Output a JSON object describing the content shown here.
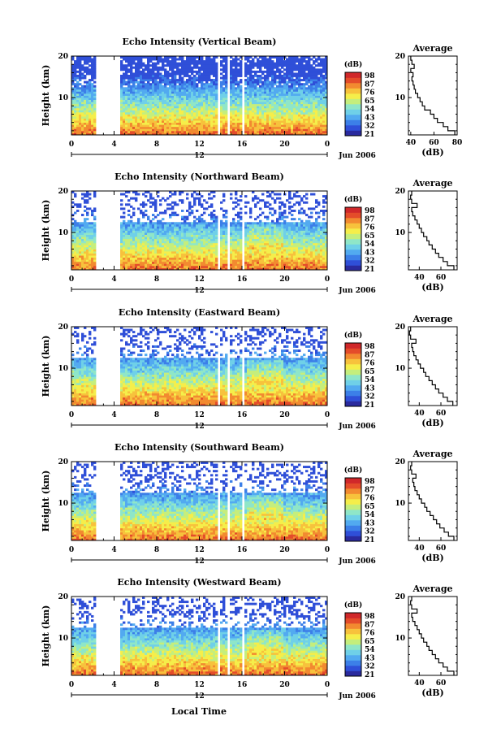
{
  "figure": {
    "xlabel": "Local Time",
    "date_label": "Jun 2006",
    "date_tick": "12",
    "panel_ylabel": "Height (km)",
    "colorbar_unit": "(dB)",
    "profile_title": "Average",
    "profile_xlabel": "(dB)"
  },
  "colors": {
    "colormap": [
      "#2a2a9e",
      "#2f4fd8",
      "#3c7fe8",
      "#52aaf0",
      "#6fd0e8",
      "#8fe6c8",
      "#c5ee7c",
      "#f5ee4a",
      "#f7c23c",
      "#f28a30",
      "#e44c2a",
      "#d0282a"
    ],
    "gap": "#ffffff",
    "profile_line": "#000000"
  },
  "chart_data": [
    {
      "type": "heatmap",
      "title": "Echo Intensity (Vertical Beam)",
      "xlabel": "",
      "ylabel": "Height (km)",
      "x_ticks": [
        "0",
        "4",
        "8",
        "12",
        "16",
        "20",
        "0"
      ],
      "y_ticks": [
        "10",
        "20"
      ],
      "xlim": [
        0,
        24
      ],
      "ylim": [
        1,
        20
      ],
      "colorbar_ticks": [
        "98",
        "87",
        "76",
        "65",
        "54",
        "43",
        "32",
        "21"
      ],
      "data_gaps_hours": [
        [
          2.3,
          4.6
        ],
        [
          13.8,
          14.0
        ],
        [
          14.6,
          14.8
        ],
        [
          16.0,
          16.2
        ]
      ],
      "profile": {
        "title": "Average",
        "xlabel": "(dB)",
        "x_ticks": [
          "40",
          "60",
          "80"
        ],
        "xlim": [
          38,
          80
        ],
        "y_ticks": [
          "10",
          "20"
        ],
        "ylim": [
          1,
          20
        ],
        "height_km": [
          1.5,
          2.5,
          3.5,
          4.5,
          5.5,
          6.5,
          7.5,
          8.5,
          9.5,
          10.5,
          11.5,
          12.5,
          13.5,
          14.5,
          15.5,
          16.5,
          17.5,
          18.5,
          19.5
        ],
        "mean_db": [
          78,
          72,
          68,
          63,
          60,
          57,
          52,
          50,
          48,
          46,
          44,
          43,
          42,
          41,
          42,
          40,
          43,
          41,
          40
        ]
      }
    },
    {
      "type": "heatmap",
      "title": "Echo Intensity (Northward Beam)",
      "xlabel": "",
      "ylabel": "Height (km)",
      "x_ticks": [
        "0",
        "4",
        "8",
        "12",
        "16",
        "20",
        "0"
      ],
      "y_ticks": [
        "10",
        "20"
      ],
      "xlim": [
        0,
        24
      ],
      "ylim": [
        1,
        20
      ],
      "colorbar_ticks": [
        "98",
        "87",
        "76",
        "65",
        "54",
        "43",
        "32",
        "21"
      ],
      "data_gaps_hours": [
        [
          2.3,
          4.6
        ],
        [
          13.8,
          14.0
        ],
        [
          14.6,
          14.8
        ],
        [
          16.0,
          16.2
        ]
      ],
      "profile": {
        "title": "Average",
        "xlabel": "(dB)",
        "x_ticks": [
          "40",
          "60"
        ],
        "xlim": [
          30,
          75
        ],
        "y_ticks": [
          "10",
          "20"
        ],
        "ylim": [
          1,
          20
        ],
        "height_km": [
          1.5,
          2.5,
          3.5,
          4.5,
          5.5,
          6.5,
          7.5,
          8.5,
          9.5,
          10.5,
          11.5,
          12.5,
          13.5,
          14.5,
          15.5,
          16.5,
          17.5,
          18.5,
          19.5
        ],
        "mean_db": [
          72,
          66,
          62,
          58,
          55,
          52,
          49,
          47,
          44,
          42,
          40,
          38,
          36,
          34,
          33,
          38,
          33,
          32,
          33
        ]
      }
    },
    {
      "type": "heatmap",
      "title": "Echo Intensity (Eastward Beam)",
      "xlabel": "",
      "ylabel": "Height (km)",
      "x_ticks": [
        "0",
        "4",
        "8",
        "12",
        "16",
        "20",
        "0"
      ],
      "y_ticks": [
        "10",
        "20"
      ],
      "xlim": [
        0,
        24
      ],
      "ylim": [
        1,
        20
      ],
      "colorbar_ticks": [
        "98",
        "87",
        "76",
        "65",
        "54",
        "43",
        "32",
        "21"
      ],
      "data_gaps_hours": [
        [
          2.3,
          4.6
        ],
        [
          13.8,
          14.0
        ],
        [
          14.6,
          14.8
        ],
        [
          16.0,
          16.2
        ]
      ],
      "profile": {
        "title": "Average",
        "xlabel": "(dB)",
        "x_ticks": [
          "40",
          "60"
        ],
        "xlim": [
          30,
          75
        ],
        "y_ticks": [
          "10",
          "20"
        ],
        "ylim": [
          1,
          20
        ],
        "height_km": [
          1.5,
          2.5,
          3.5,
          4.5,
          5.5,
          6.5,
          7.5,
          8.5,
          9.5,
          10.5,
          11.5,
          12.5,
          13.5,
          14.5,
          15.5,
          16.5,
          17.5,
          18.5,
          19.5
        ],
        "mean_db": [
          71,
          66,
          62,
          58,
          55,
          52,
          49,
          46,
          44,
          41,
          39,
          37,
          35,
          34,
          33,
          37,
          32,
          31,
          32
        ]
      }
    },
    {
      "type": "heatmap",
      "title": "Echo Intensity (Southward Beam)",
      "xlabel": "",
      "ylabel": "Height (km)",
      "x_ticks": [
        "0",
        "4",
        "8",
        "12",
        "16",
        "20",
        "0"
      ],
      "y_ticks": [
        "10",
        "20"
      ],
      "xlim": [
        0,
        24
      ],
      "ylim": [
        1,
        20
      ],
      "colorbar_ticks": [
        "98",
        "87",
        "76",
        "65",
        "54",
        "43",
        "32",
        "21"
      ],
      "data_gaps_hours": [
        [
          2.3,
          4.6
        ],
        [
          13.8,
          14.0
        ],
        [
          14.6,
          14.8
        ],
        [
          16.0,
          16.2
        ]
      ],
      "profile": {
        "title": "Average",
        "xlabel": "(dB)",
        "x_ticks": [
          "40",
          "60"
        ],
        "xlim": [
          30,
          75
        ],
        "y_ticks": [
          "10",
          "20"
        ],
        "ylim": [
          1,
          20
        ],
        "height_km": [
          1.5,
          2.5,
          3.5,
          4.5,
          5.5,
          6.5,
          7.5,
          8.5,
          9.5,
          10.5,
          11.5,
          12.5,
          13.5,
          14.5,
          15.5,
          16.5,
          17.5,
          18.5,
          19.5
        ],
        "mean_db": [
          72,
          67,
          63,
          59,
          56,
          53,
          50,
          47,
          45,
          42,
          40,
          38,
          36,
          35,
          34,
          37,
          33,
          32,
          33
        ]
      }
    },
    {
      "type": "heatmap",
      "title": "Echo Intensity (Westward Beam)",
      "xlabel": "Local Time",
      "ylabel": "Height (km)",
      "x_ticks": [
        "0",
        "4",
        "8",
        "12",
        "16",
        "20",
        "0"
      ],
      "y_ticks": [
        "10",
        "20"
      ],
      "xlim": [
        0,
        24
      ],
      "ylim": [
        1,
        20
      ],
      "colorbar_ticks": [
        "98",
        "87",
        "76",
        "65",
        "54",
        "43",
        "32",
        "21"
      ],
      "data_gaps_hours": [
        [
          2.3,
          4.6
        ],
        [
          13.8,
          14.0
        ],
        [
          14.6,
          14.8
        ],
        [
          16.0,
          16.2
        ]
      ],
      "profile": {
        "title": "Average",
        "xlabel": "(dB)",
        "x_ticks": [
          "40",
          "60"
        ],
        "xlim": [
          30,
          75
        ],
        "y_ticks": [
          "10",
          "20"
        ],
        "ylim": [
          1,
          20
        ],
        "height_km": [
          1.5,
          2.5,
          3.5,
          4.5,
          5.5,
          6.5,
          7.5,
          8.5,
          9.5,
          10.5,
          11.5,
          12.5,
          13.5,
          14.5,
          15.5,
          16.5,
          17.5,
          18.5,
          19.5
        ],
        "mean_db": [
          72,
          66,
          62,
          58,
          55,
          52,
          49,
          47,
          44,
          42,
          40,
          38,
          36,
          34,
          33,
          38,
          33,
          32,
          33
        ]
      }
    }
  ]
}
